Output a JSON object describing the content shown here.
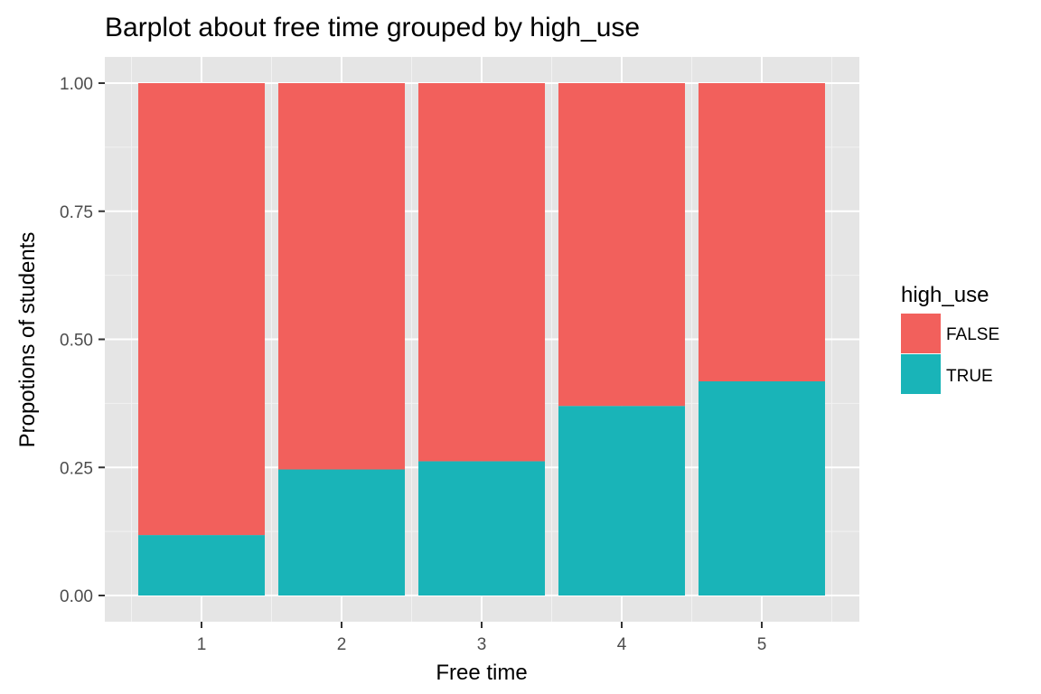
{
  "chart_data": {
    "type": "bar",
    "stacked": true,
    "title": "Barplot about free time grouped by high_use",
    "xlabel": "Free time",
    "ylabel": "Propotions of students",
    "categories": [
      "1",
      "2",
      "3",
      "4",
      "5"
    ],
    "yticks": [
      "0.00",
      "0.25",
      "0.50",
      "0.75",
      "1.00"
    ],
    "ylim": [
      0,
      1
    ],
    "grid": true,
    "legend": {
      "title": "high_use",
      "placement": "right",
      "entries": [
        "FALSE",
        "TRUE"
      ]
    },
    "series": [
      {
        "name": "TRUE",
        "color": "#19b4b8",
        "values": [
          0.118,
          0.246,
          0.262,
          0.37,
          0.418
        ]
      },
      {
        "name": "FALSE",
        "color": "#f2605c",
        "values": [
          0.882,
          0.754,
          0.738,
          0.63,
          0.582
        ]
      }
    ]
  }
}
